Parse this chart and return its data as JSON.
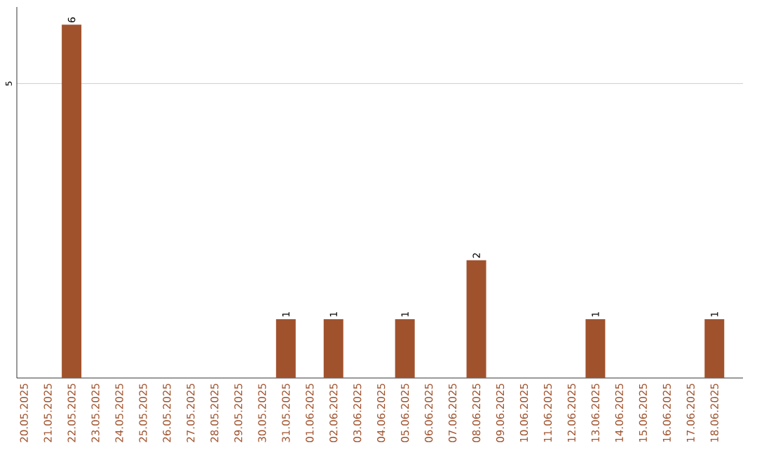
{
  "chart_data": {
    "type": "bar",
    "categories": [
      "20.05.2025",
      "21.05.2025",
      "22.05.2025",
      "23.05.2025",
      "24.05.2025",
      "25.05.2025",
      "26.05.2025",
      "27.05.2025",
      "28.05.2025",
      "29.05.2025",
      "30.05.2025",
      "31.05.2025",
      "01.06.2025",
      "02.06.2025",
      "03.06.2025",
      "04.06.2025",
      "05.06.2025",
      "06.06.2025",
      "07.06.2025",
      "08.06.2025",
      "09.06.2025",
      "10.06.2025",
      "11.06.2025",
      "12.06.2025",
      "13.06.2025",
      "14.06.2025",
      "15.06.2025",
      "16.06.2025",
      "17.06.2025",
      "18.06.2025"
    ],
    "values": [
      0,
      0,
      6,
      0,
      0,
      0,
      0,
      0,
      0,
      0,
      0,
      1,
      0,
      1,
      0,
      0,
      1,
      0,
      0,
      2,
      0,
      0,
      0,
      0,
      1,
      0,
      0,
      0,
      0,
      1
    ],
    "value_labels": [
      null,
      null,
      "6",
      null,
      null,
      null,
      null,
      null,
      null,
      null,
      null,
      "1",
      null,
      "1",
      null,
      null,
      "1",
      null,
      null,
      "2",
      null,
      null,
      null,
      null,
      "1",
      null,
      null,
      null,
      null,
      "1"
    ],
    "color": "#a0522d",
    "ylim": [
      0,
      6.3
    ],
    "yticks": [
      5
    ],
    "grid": "y"
  }
}
